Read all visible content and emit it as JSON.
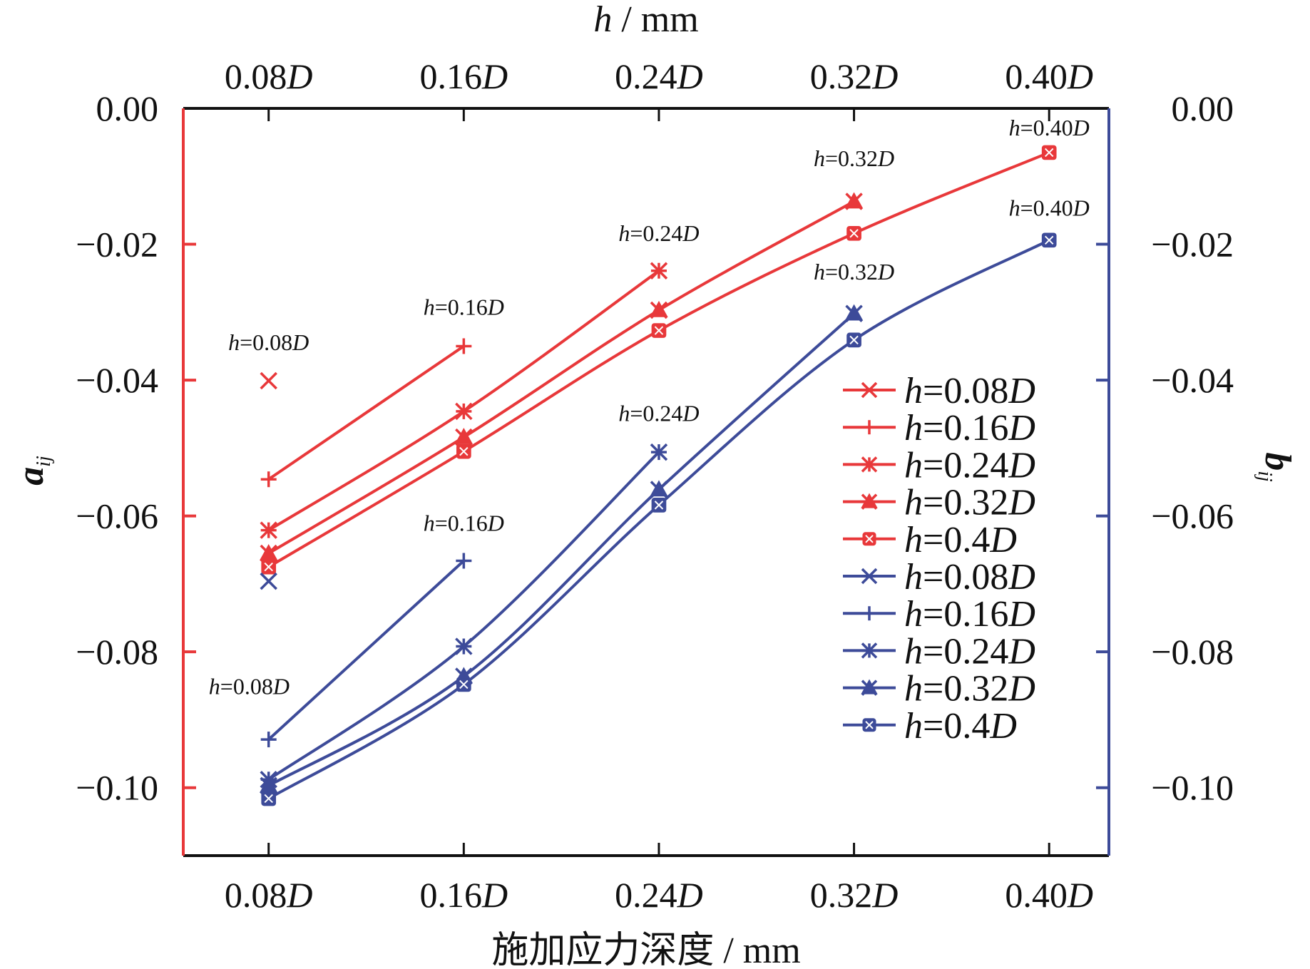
{
  "chart_data": {
    "type": "line",
    "title": "",
    "xlabel": "施加应力深度 / mm",
    "top_xlabel": {
      "var": "h",
      "unit": " / mm"
    },
    "ylabel_left": {
      "base": "a",
      "sub": "ij"
    },
    "ylabel_right": {
      "base": "b",
      "sub": "ij"
    },
    "x_categories": [
      "0.08D",
      "0.16D",
      "0.24D",
      "0.32D",
      "0.40D"
    ],
    "x_tick_labels": [
      {
        "num": "0.08",
        "var": "D"
      },
      {
        "num": "0.16",
        "var": "D"
      },
      {
        "num": "0.24",
        "var": "D"
      },
      {
        "num": "0.32",
        "var": "D"
      },
      {
        "num": "0.40",
        "var": "D"
      }
    ],
    "x_values": [
      0.08,
      0.16,
      0.24,
      0.32,
      0.4
    ],
    "xlim": [
      0.045,
      0.4245
    ],
    "ylim": [
      -0.11,
      0.0
    ],
    "yticks": [
      0.0,
      -0.02,
      -0.04,
      -0.06,
      -0.08,
      -0.1
    ],
    "ytick_labels": [
      "0.00",
      "−0.02",
      "−0.04",
      "−0.06",
      "−0.08",
      "−0.10"
    ],
    "grid": false,
    "legend_placement": "lower-right",
    "colors": {
      "a": "#e8383a",
      "b": "#3d4b99",
      "axis": "#111111"
    },
    "series": [
      {
        "name": "h=0.08D",
        "axis": "a",
        "marker": "x",
        "x": [
          0.08
        ],
        "values": [
          -0.0401
        ]
      },
      {
        "name": "h=0.16D",
        "axis": "a",
        "marker": "plus",
        "x": [
          0.08,
          0.16
        ],
        "values": [
          -0.0546,
          -0.035
        ]
      },
      {
        "name": "h=0.24D",
        "axis": "a",
        "marker": "asterisk",
        "x": [
          0.08,
          0.16,
          0.24
        ],
        "values": [
          -0.0621,
          -0.0446,
          -0.0239
        ]
      },
      {
        "name": "h=0.32D",
        "axis": "a",
        "marker": "x-triangle",
        "x": [
          0.08,
          0.16,
          0.24,
          0.32
        ],
        "values": [
          -0.0655,
          -0.0484,
          -0.0297,
          -0.0137
        ]
      },
      {
        "name": "h=0.4D",
        "axis": "a",
        "marker": "square-cross",
        "x": [
          0.08,
          0.16,
          0.24,
          0.32,
          0.4
        ],
        "values": [
          -0.0675,
          -0.0505,
          -0.0327,
          -0.0184,
          -0.0065
        ]
      },
      {
        "name": "h=0.08D",
        "axis": "b",
        "marker": "x",
        "x": [
          0.08
        ],
        "values": [
          -0.0696
        ]
      },
      {
        "name": "h=0.16D",
        "axis": "b",
        "marker": "plus",
        "x": [
          0.08,
          0.16
        ],
        "values": [
          -0.0929,
          -0.0666
        ]
      },
      {
        "name": "h=0.24D",
        "axis": "b",
        "marker": "asterisk",
        "x": [
          0.08,
          0.16,
          0.24
        ],
        "values": [
          -0.0988,
          -0.0792,
          -0.0506
        ]
      },
      {
        "name": "h=0.32D",
        "axis": "b",
        "marker": "x-triangle",
        "x": [
          0.08,
          0.16,
          0.24,
          0.32
        ],
        "values": [
          -0.0997,
          -0.0836,
          -0.0561,
          -0.0302
        ]
      },
      {
        "name": "h=0.4D",
        "axis": "b",
        "marker": "square-cross",
        "x": [
          0.08,
          0.16,
          0.24,
          0.32,
          0.4
        ],
        "values": [
          -0.1016,
          -0.0848,
          -0.0584,
          -0.0341,
          -0.0194
        ]
      }
    ],
    "legend_entries": [
      {
        "num": "0.08",
        "axis": "a",
        "marker": "x"
      },
      {
        "num": "0.16",
        "axis": "a",
        "marker": "plus"
      },
      {
        "num": "0.24",
        "axis": "a",
        "marker": "asterisk"
      },
      {
        "num": "0.32",
        "axis": "a",
        "marker": "x-triangle"
      },
      {
        "num": "0.4",
        "axis": "a",
        "marker": "square-cross"
      },
      {
        "num": "0.08",
        "axis": "b",
        "marker": "x"
      },
      {
        "num": "0.16",
        "axis": "b",
        "marker": "plus"
      },
      {
        "num": "0.24",
        "axis": "b",
        "marker": "asterisk"
      },
      {
        "num": "0.32",
        "axis": "b",
        "marker": "x-triangle"
      },
      {
        "num": "0.4",
        "axis": "b",
        "marker": "square-cross"
      }
    ],
    "annotations": [
      {
        "num": "0.08",
        "x": 0.08,
        "y": -0.0356
      },
      {
        "num": "0.16",
        "x": 0.16,
        "y": -0.0304
      },
      {
        "num": "0.24",
        "x": 0.24,
        "y": -0.0195
      },
      {
        "num": "0.32",
        "x": 0.32,
        "y": -0.0085
      },
      {
        "num": "0.40",
        "x": 0.4,
        "y": -0.004
      },
      {
        "num": "0.08",
        "x": 0.072,
        "y": -0.0862
      },
      {
        "num": "0.16",
        "x": 0.16,
        "y": -0.0622
      },
      {
        "num": "0.24",
        "x": 0.24,
        "y": -0.046
      },
      {
        "num": "0.32",
        "x": 0.32,
        "y": -0.0252
      },
      {
        "num": "0.40",
        "x": 0.4,
        "y": -0.0158
      }
    ]
  }
}
